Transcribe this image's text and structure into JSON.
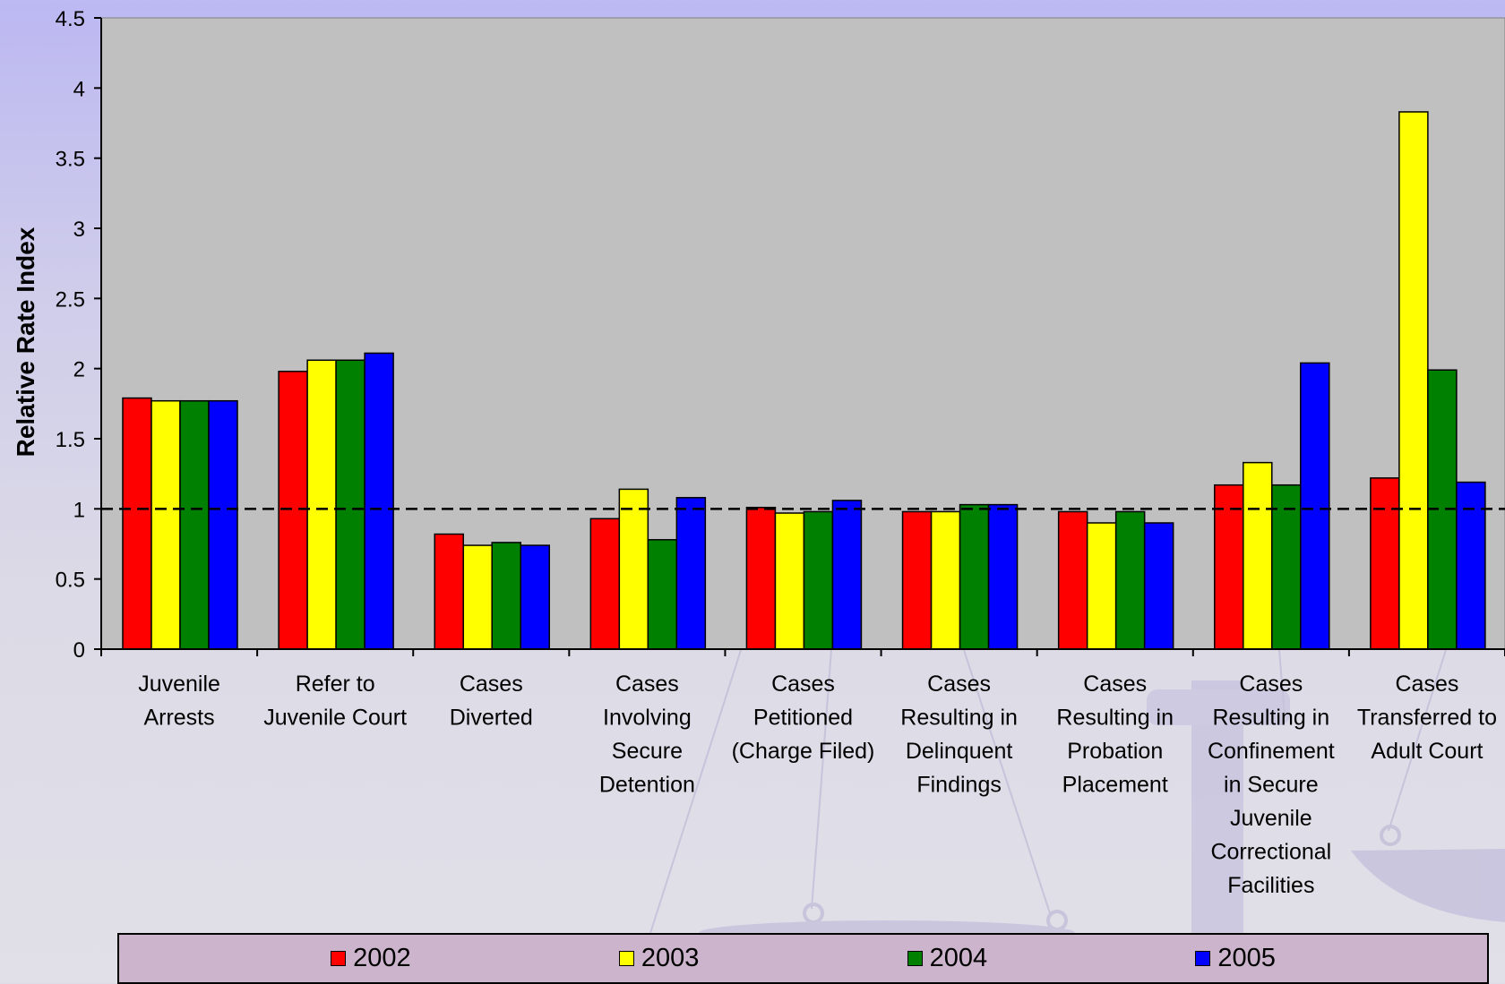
{
  "chart_data": {
    "type": "bar",
    "title": "",
    "xlabel": "",
    "ylabel": "Relative Rate Index",
    "ylim": [
      0,
      4.5
    ],
    "yticks": [
      "0",
      "0.5",
      "1",
      "1.5",
      "2",
      "2.5",
      "3",
      "3.5",
      "4",
      "4.5"
    ],
    "ytick_values": [
      0,
      0.5,
      1,
      1.5,
      2,
      2.5,
      3,
      3.5,
      4,
      4.5
    ],
    "reference_line": 1.0,
    "grid": false,
    "legend_position": "bottom",
    "categories": [
      [
        "Juvenile",
        "Arrests"
      ],
      [
        "Refer to",
        "Juvenile Court"
      ],
      [
        "Cases",
        "Diverted"
      ],
      [
        "Cases",
        "Involving",
        "Secure",
        "Detention"
      ],
      [
        "Cases",
        "Petitioned",
        "(Charge Filed)"
      ],
      [
        "Cases",
        "Resulting in",
        "Delinquent",
        "Findings"
      ],
      [
        "Cases",
        "Resulting in",
        "Probation",
        "Placement"
      ],
      [
        "Cases",
        "Resulting in",
        "Confinement",
        "in Secure",
        "Juvenile",
        "Correctional",
        "Facilities"
      ],
      [
        "Cases",
        "Transferred to",
        "Adult Court"
      ]
    ],
    "series": [
      {
        "name": "2002",
        "color": "#ff0000",
        "values": [
          1.79,
          1.98,
          0.82,
          0.93,
          1.01,
          0.98,
          0.98,
          1.17,
          1.22
        ]
      },
      {
        "name": "2003",
        "color": "#ffff00",
        "values": [
          1.77,
          2.06,
          0.74,
          1.14,
          0.97,
          0.98,
          0.9,
          1.33,
          3.83
        ]
      },
      {
        "name": "2004",
        "color": "#008000",
        "values": [
          1.77,
          2.06,
          0.76,
          0.78,
          0.98,
          1.03,
          0.98,
          1.17,
          1.99
        ]
      },
      {
        "name": "2005",
        "color": "#0000ff",
        "values": [
          1.77,
          2.11,
          0.74,
          1.08,
          1.06,
          1.03,
          0.9,
          2.04,
          1.19
        ]
      }
    ]
  },
  "legend": {
    "items": [
      {
        "label": "2002",
        "color": "#ff0000"
      },
      {
        "label": "2003",
        "color": "#ffff00"
      },
      {
        "label": "2004",
        "color": "#008000"
      },
      {
        "label": "2005",
        "color": "#0000ff"
      }
    ]
  },
  "colors": {
    "plot_background": "#c0c0c0",
    "reference_line": "#000000"
  }
}
